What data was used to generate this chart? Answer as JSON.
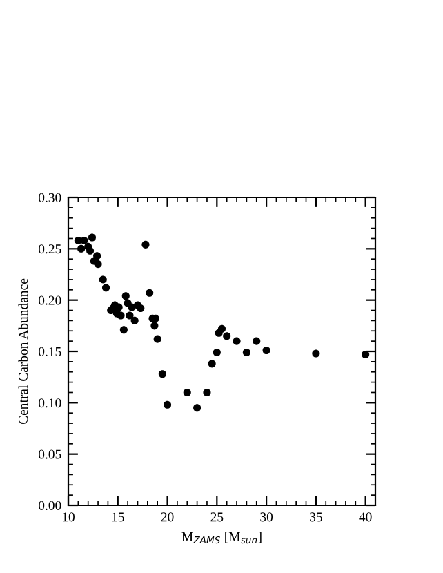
{
  "chart_data": {
    "type": "scatter",
    "xlabel": "M$_{ZAMS}$ [M$_{sun}$]",
    "ylabel": "Central Carbon Abundance",
    "x": [
      11.0,
      11.3,
      11.6,
      12.0,
      12.2,
      12.4,
      12.6,
      12.9,
      13.0,
      13.5,
      13.8,
      14.3,
      14.5,
      14.7,
      14.9,
      15.1,
      15.3,
      15.6,
      15.8,
      16.0,
      16.2,
      16.4,
      16.7,
      17.0,
      17.3,
      17.8,
      18.2,
      18.5,
      18.7,
      18.8,
      19.0,
      19.5,
      20.0,
      22.0,
      23.0,
      24.0,
      24.5,
      25.0,
      25.2,
      25.5,
      26.0,
      27.0,
      28.0,
      29.0,
      30.0,
      35.0,
      40.0
    ],
    "values": [
      0.258,
      0.25,
      0.258,
      0.252,
      0.248,
      0.261,
      0.238,
      0.243,
      0.235,
      0.22,
      0.212,
      0.19,
      0.192,
      0.195,
      0.187,
      0.193,
      0.185,
      0.171,
      0.204,
      0.197,
      0.185,
      0.193,
      0.18,
      0.195,
      0.192,
      0.254,
      0.207,
      0.182,
      0.175,
      0.182,
      0.162,
      0.128,
      0.098,
      0.11,
      0.095,
      0.11,
      0.138,
      0.149,
      0.168,
      0.172,
      0.165,
      0.16,
      0.149,
      0.16,
      0.151,
      0.148,
      0.147
    ],
    "color": "#000000",
    "marker": "circle",
    "xlim": [
      10,
      41
    ],
    "xticks": [
      10,
      15,
      20,
      25,
      30,
      35,
      40
    ],
    "ylim": [
      0,
      0.3
    ],
    "yticks": [
      {
        "value": 0,
        "label": "0.00"
      },
      {
        "value": 0.05,
        "label": "0.05"
      },
      {
        "value": 0.1,
        "label": "0.10"
      },
      {
        "value": 0.15,
        "label": "0.15"
      },
      {
        "value": 0.2,
        "label": "0.20"
      },
      {
        "value": 0.25,
        "label": "0.25"
      },
      {
        "value": 0.3,
        "label": "0.30"
      }
    ],
    "grid": false,
    "legend": false
  }
}
